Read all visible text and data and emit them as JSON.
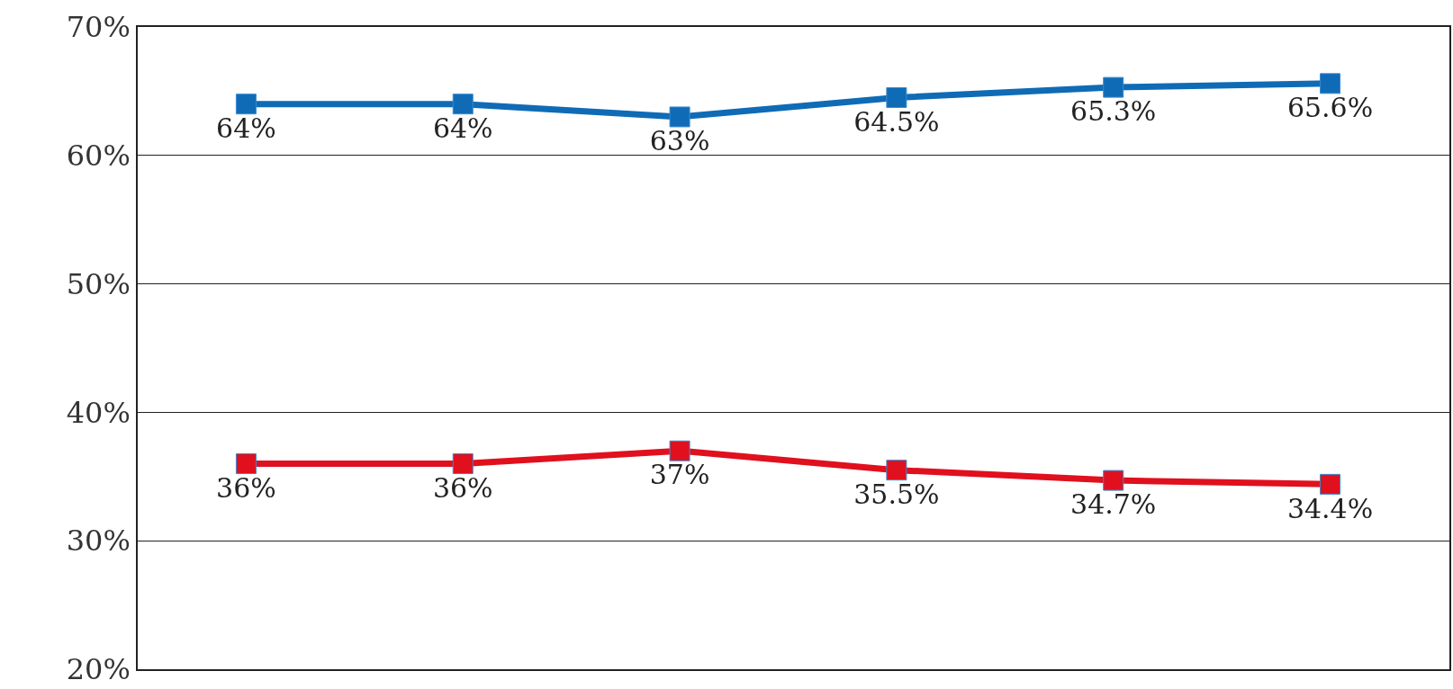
{
  "chart_data": {
    "type": "line",
    "categories": [
      null,
      null,
      null,
      null,
      null,
      null
    ],
    "series": [
      {
        "color": "#0f6bb5",
        "values": [
          64,
          64,
          63,
          64.5,
          65.3,
          65.6
        ],
        "value_labels": [
          "64%",
          "64%",
          "63%",
          "64.5%",
          "65.3%",
          "65.6%"
        ]
      },
      {
        "color": "#e0101e",
        "values": [
          36,
          36,
          37,
          35.5,
          34.7,
          34.4
        ],
        "value_labels": [
          "36%",
          "36%",
          "37%",
          "35.5%",
          "34.7%",
          "34.4%"
        ]
      }
    ],
    "ylim": [
      20,
      70
    ],
    "yticks": [
      {
        "value": 20,
        "label": "20%"
      },
      {
        "value": 30,
        "label": "30%"
      },
      {
        "value": 40,
        "label": "40%"
      },
      {
        "value": 50,
        "label": "50%"
      },
      {
        "value": 60,
        "label": "60%"
      },
      {
        "value": 70,
        "label": "70%"
      }
    ],
    "grid": "y",
    "marker": "square",
    "line_style": "solid",
    "tick_labels": "y"
  }
}
